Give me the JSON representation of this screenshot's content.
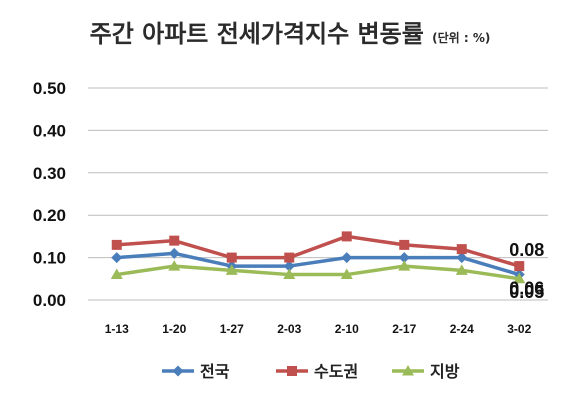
{
  "chart_data": {
    "type": "line",
    "title": "주간 아파트 전세가격지수 변동률",
    "unit": "(단위 : %)",
    "categories": [
      "1-13",
      "1-20",
      "1-27",
      "2-03",
      "2-10",
      "2-17",
      "2-24",
      "3-02"
    ],
    "yticks": [
      "0.00",
      "0.10",
      "0.20",
      "0.30",
      "0.40",
      "0.50"
    ],
    "ylim": [
      0,
      0.5
    ],
    "grid": true,
    "legend_position": "bottom",
    "series": [
      {
        "name": "전국",
        "color": "#4a7ebb",
        "marker": "diamond",
        "values": [
          0.1,
          0.11,
          0.08,
          0.08,
          0.1,
          0.1,
          0.1,
          0.06
        ]
      },
      {
        "name": "수도권",
        "color": "#c0504d",
        "marker": "square",
        "values": [
          0.13,
          0.14,
          0.1,
          0.1,
          0.15,
          0.13,
          0.12,
          0.08
        ]
      },
      {
        "name": "지방",
        "color": "#9bbb59",
        "marker": "triangle",
        "values": [
          0.06,
          0.08,
          0.07,
          0.06,
          0.06,
          0.08,
          0.07,
          0.05
        ]
      }
    ],
    "data_labels": [
      {
        "series": 1,
        "index": 7,
        "text": "0.08"
      },
      {
        "series": 0,
        "index": 7,
        "text": "0.06"
      },
      {
        "series": 2,
        "index": 7,
        "text": "0.05"
      }
    ]
  }
}
